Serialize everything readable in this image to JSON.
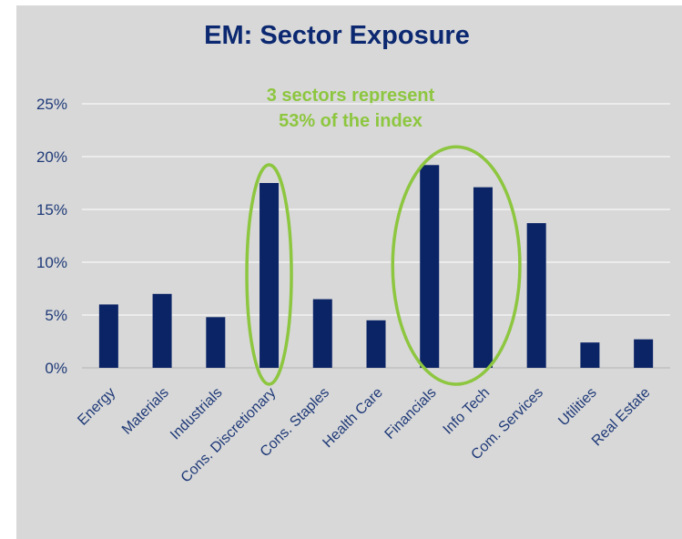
{
  "chart_data": {
    "type": "bar",
    "title": "EM: Sector Exposure",
    "annotation": [
      "3 sectors represent",
      "53% of the index"
    ],
    "categories": [
      "Energy",
      "Materials",
      "Industrials",
      "Cons. Discretionary",
      "Cons. Staples",
      "Health Care",
      "Financials",
      "Info Tech",
      "Com. Services",
      "Utilities",
      "Real Estate"
    ],
    "values": [
      6.0,
      7.0,
      4.8,
      17.5,
      6.5,
      4.5,
      19.2,
      17.1,
      13.7,
      2.4,
      2.7
    ],
    "ylim": [
      0,
      25
    ],
    "yticks": [
      0,
      5,
      10,
      15,
      20,
      25
    ],
    "ytick_labels": [
      "0%",
      "5%",
      "10%",
      "15%",
      "20%",
      "25%"
    ],
    "highlighted_groups": [
      [
        "Cons. Discretionary"
      ],
      [
        "Financials",
        "Info Tech"
      ]
    ],
    "grid": true,
    "colors": {
      "bar": "#0b2466",
      "highlight": "#8dc63f",
      "title": "#0b2870"
    }
  }
}
